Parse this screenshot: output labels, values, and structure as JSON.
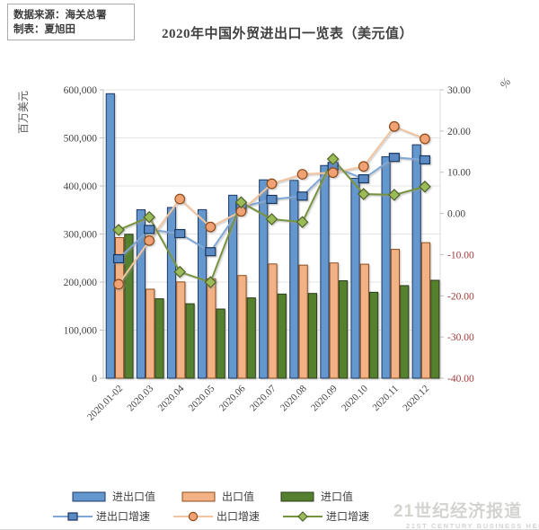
{
  "header": {
    "source_line": "数据来源：海关总署",
    "author_line": "制表：夏旭田",
    "title": "2020年中国外贸进出口一览表（美元值）"
  },
  "watermark": {
    "line_cn": "21世纪经济报道",
    "line_en": "21ST CENTURY BUSINESS HERALD"
  },
  "chart_data": {
    "type": "combo-bar-line",
    "title": "2020年中国外贸进出口一览表（美元值）",
    "categories": [
      "2020.01-02",
      "2020.03",
      "2020.04",
      "2020.05",
      "2020.06",
      "2020.07",
      "2020.08",
      "2020.09",
      "2020.10",
      "2020.11",
      "2020.12"
    ],
    "grid": "horizontal",
    "legend_position": "bottom",
    "y_left": {
      "title": "百万美元",
      "min": 0,
      "max": 600000,
      "step": 100000,
      "ticks": [
        "600,000",
        "500,000",
        "400,000",
        "300,000",
        "200,000",
        "100,000",
        "0"
      ],
      "tick_color": "#3f3f3f"
    },
    "y_right": {
      "title": "%",
      "min": -40,
      "max": 30,
      "step": 10,
      "ticks": [
        "30.00",
        "20.00",
        "10.00",
        "0.00",
        "-10.00",
        "-20.00",
        "-30.00",
        "-40.00"
      ],
      "tick_color_positive": "#3f3f3f",
      "tick_color_negative": "#a03b3b"
    },
    "bar_series": [
      {
        "name": "进出口值",
        "fill": "#6497CE",
        "border": "#1f3864",
        "values": [
          591990,
          350410,
          355180,
          350700,
          380690,
          412720,
          411600,
          442520,
          415920,
          460720,
          485700
        ]
      },
      {
        "name": "出口值",
        "fill": "#F2B favoured",
        "border": "#8c4b16",
        "values": [
          292450,
          185150,
          200280,
          206810,
          213570,
          237630,
          235260,
          239760,
          237180,
          268070,
          281930
        ]
      },
      {
        "name": "进口值",
        "fill": "#54802F",
        "border": "#2b3d1b",
        "values": [
          299540,
          165250,
          154900,
          143890,
          167150,
          175090,
          176340,
          202760,
          178740,
          192650,
          203750
        ]
      }
    ],
    "line_series": [
      {
        "name": "进出口增速",
        "marker": "square",
        "line_color": "#7da7d8",
        "marker_fill": "#5b8ac5",
        "marker_stroke": "#17375e",
        "values": [
          -11.0,
          -3.9,
          -4.9,
          -9.3,
          1.5,
          3.4,
          4.2,
          11.4,
          8.4,
          13.6,
          13.0
        ]
      },
      {
        "name": "出口增速",
        "marker": "circle",
        "line_color": "#f2c5a0",
        "marker_fill": "#f0a274",
        "marker_stroke": "#8c4b16",
        "values": [
          -17.2,
          -6.6,
          3.5,
          -3.3,
          0.5,
          7.2,
          9.5,
          9.9,
          11.4,
          21.1,
          18.1
        ]
      },
      {
        "name": "进口增速",
        "marker": "diamond",
        "line_color": "#77933c",
        "marker_fill": "#9abb59",
        "marker_stroke": "#4f6228",
        "values": [
          -4.0,
          -0.9,
          -14.2,
          -16.7,
          2.7,
          -1.4,
          -2.1,
          13.2,
          4.7,
          4.5,
          6.5
        ]
      }
    ]
  }
}
